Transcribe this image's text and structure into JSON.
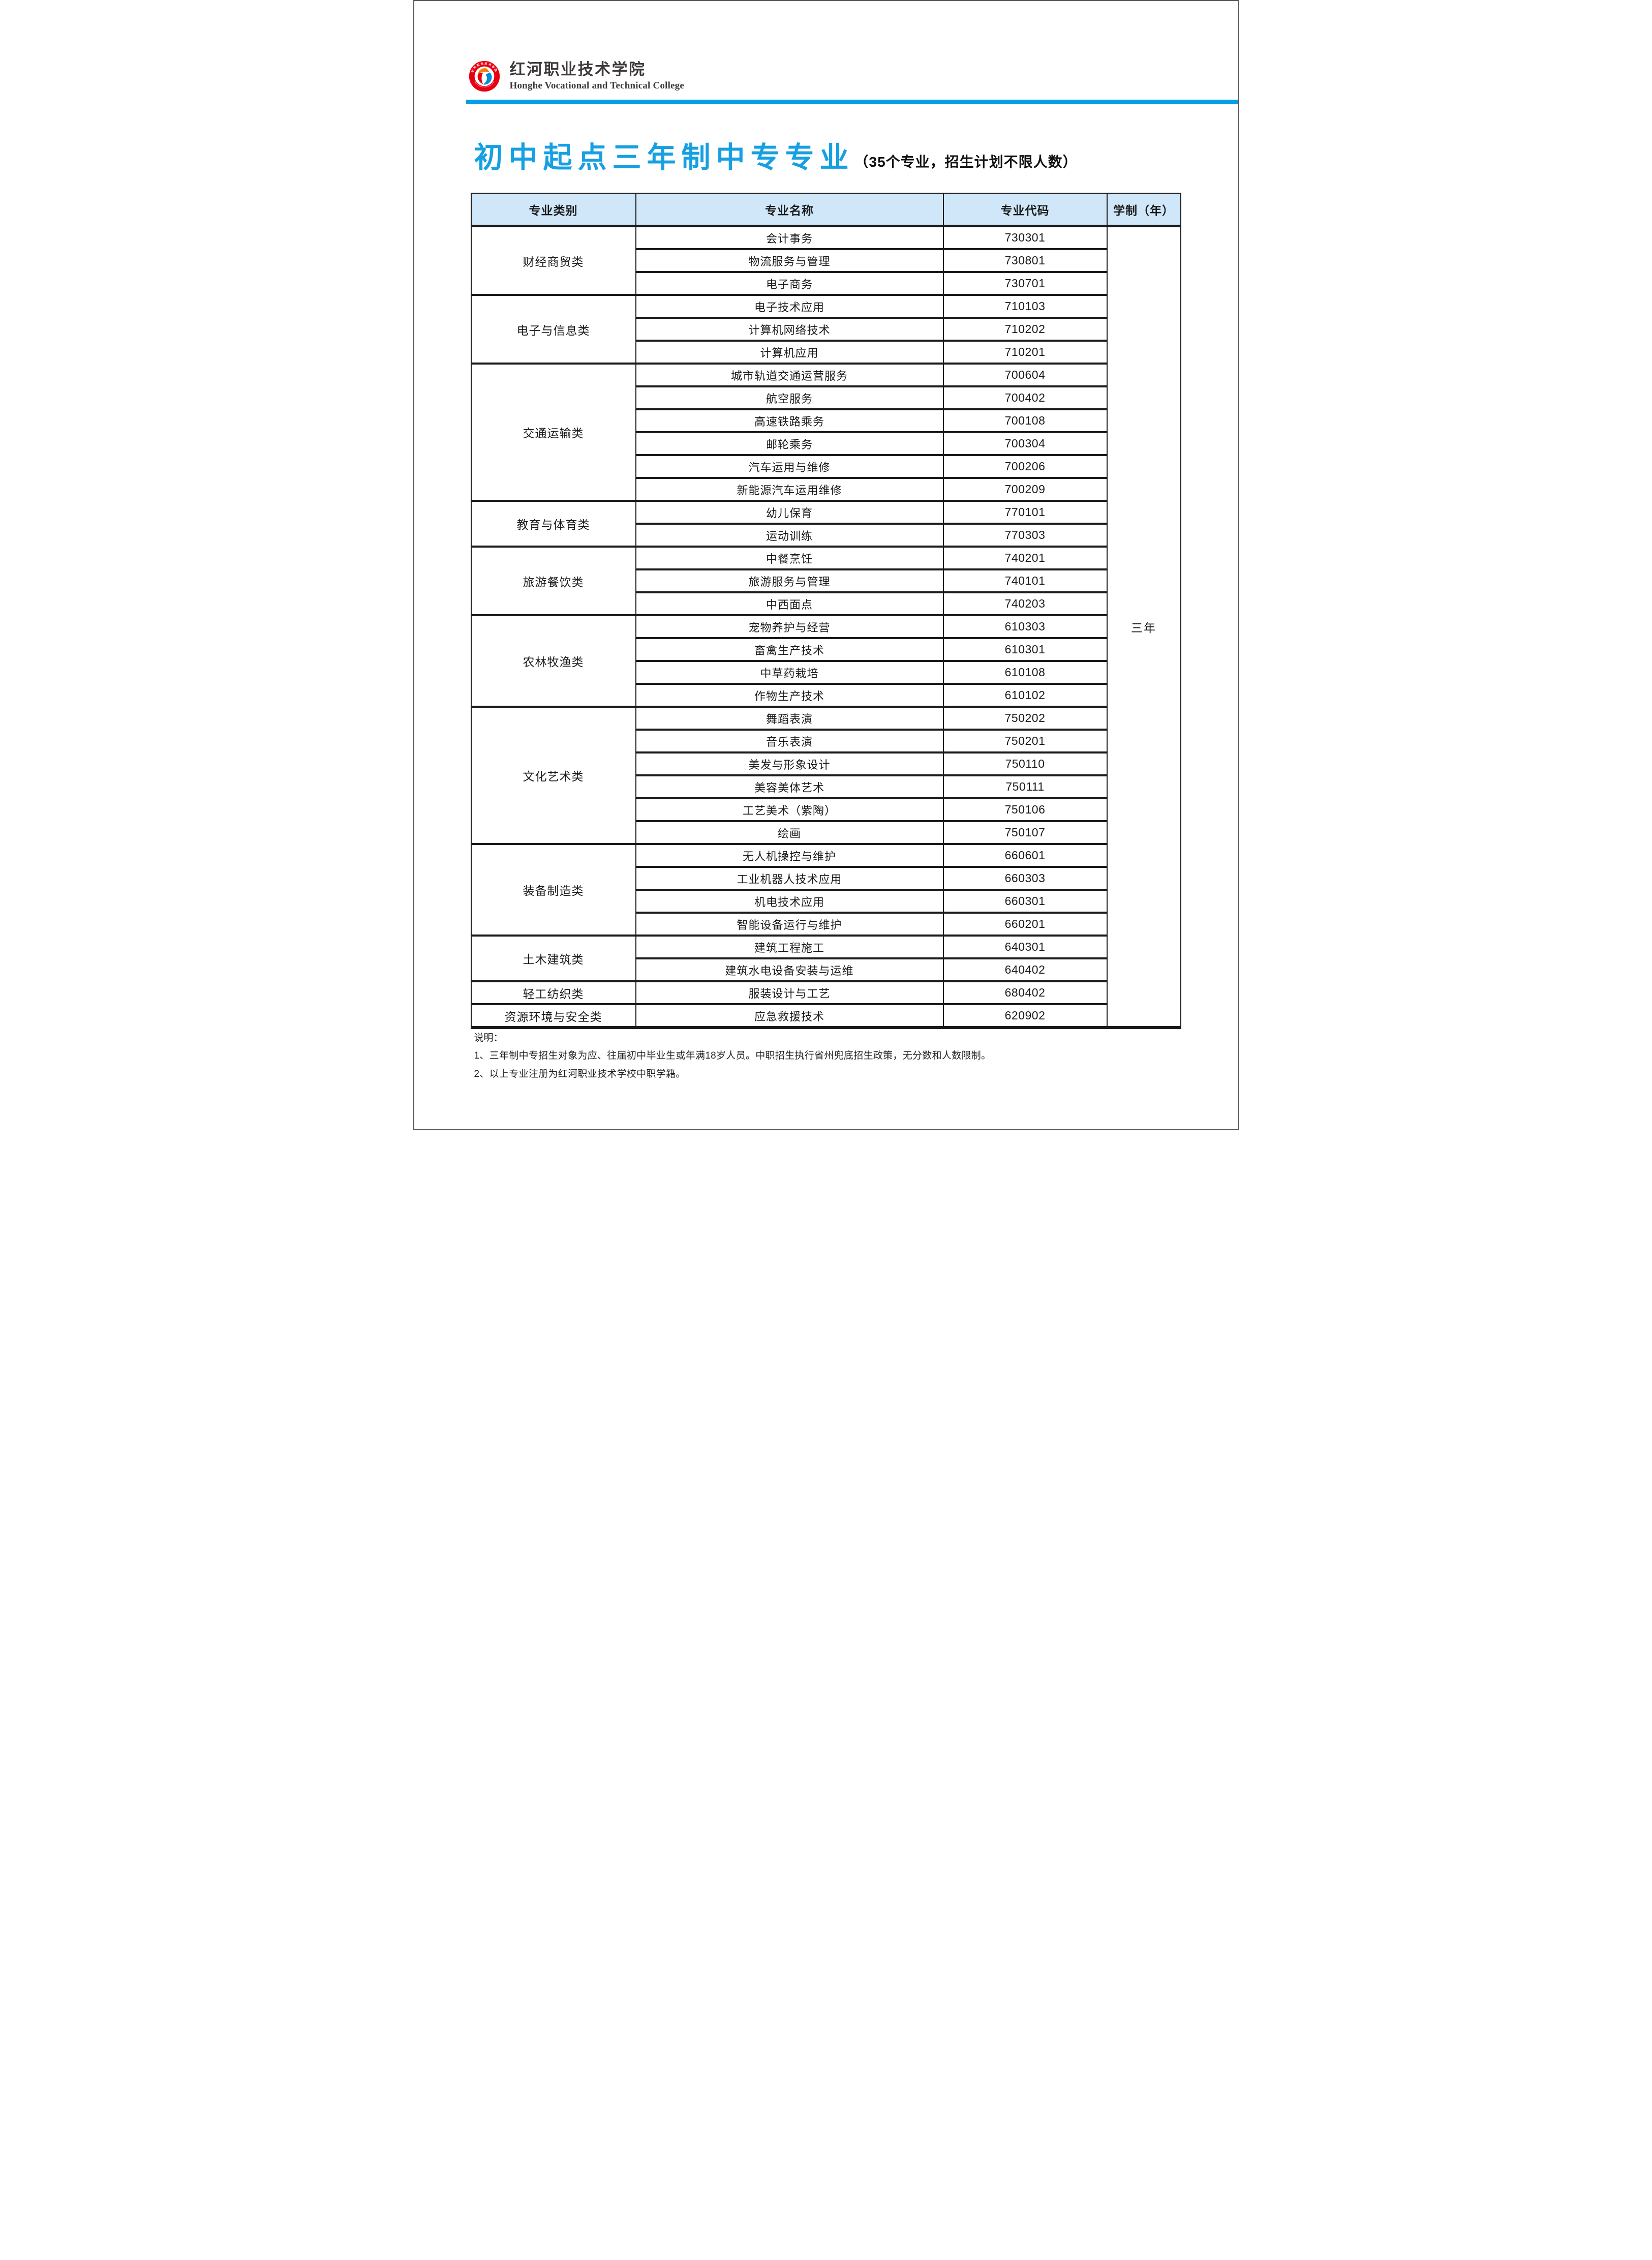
{
  "colors": {
    "accent": "#009fe8",
    "title_blue": "#16a0e2",
    "header_bg": "#cfe7f8",
    "logo_red": "#e60012",
    "ink": "#1a1a1a"
  },
  "header": {
    "college_name_zh": "红河职业技术学院",
    "college_name_en": "Honghe Vocational and Technical College"
  },
  "logo": {
    "ring_top": "红河职业技术学院",
    "ring_bottom": "Honghe Vocational and Technical College"
  },
  "title": {
    "text": "初中起点三年制中专专业",
    "subtitle": "（35个专业，招生计划不限人数）"
  },
  "table": {
    "columns": [
      "专业类别",
      "专业名称",
      "专业代码",
      "学制（年）"
    ],
    "duration": "三年",
    "groups": [
      {
        "category": "财经商贸类",
        "programs": [
          {
            "name": "会计事务",
            "code": "730301"
          },
          {
            "name": "物流服务与管理",
            "code": "730801"
          },
          {
            "name": "电子商务",
            "code": "730701"
          }
        ]
      },
      {
        "category": "电子与信息类",
        "programs": [
          {
            "name": "电子技术应用",
            "code": "710103"
          },
          {
            "name": "计算机网络技术",
            "code": "710202"
          },
          {
            "name": "计算机应用",
            "code": "710201"
          }
        ]
      },
      {
        "category": "交通运输类",
        "programs": [
          {
            "name": "城市轨道交通运营服务",
            "code": "700604"
          },
          {
            "name": "航空服务",
            "code": "700402"
          },
          {
            "name": "高速铁路乘务",
            "code": "700108"
          },
          {
            "name": "邮轮乘务",
            "code": "700304"
          },
          {
            "name": "汽车运用与维修",
            "code": "700206"
          },
          {
            "name": "新能源汽车运用维修",
            "code": "700209"
          }
        ]
      },
      {
        "category": "教育与体育类",
        "programs": [
          {
            "name": "幼儿保育",
            "code": "770101"
          },
          {
            "name": "运动训练",
            "code": "770303"
          }
        ]
      },
      {
        "category": "旅游餐饮类",
        "programs": [
          {
            "name": "中餐烹饪",
            "code": "740201"
          },
          {
            "name": "旅游服务与管理",
            "code": "740101"
          },
          {
            "name": "中西面点",
            "code": "740203"
          }
        ]
      },
      {
        "category": "农林牧渔类",
        "programs": [
          {
            "name": "宠物养护与经营",
            "code": "610303"
          },
          {
            "name": "畜禽生产技术",
            "code": "610301"
          },
          {
            "name": "中草药栽培",
            "code": "610108"
          },
          {
            "name": "作物生产技术",
            "code": "610102"
          }
        ]
      },
      {
        "category": "文化艺术类",
        "programs": [
          {
            "name": "舞蹈表演",
            "code": "750202"
          },
          {
            "name": "音乐表演",
            "code": "750201"
          },
          {
            "name": "美发与形象设计",
            "code": "750110"
          },
          {
            "name": "美容美体艺术",
            "code": "750111"
          },
          {
            "name": "工艺美术（紫陶）",
            "code": "750106"
          },
          {
            "name": "绘画",
            "code": "750107"
          }
        ]
      },
      {
        "category": "装备制造类",
        "programs": [
          {
            "name": "无人机操控与维护",
            "code": "660601"
          },
          {
            "name": "工业机器人技术应用",
            "code": "660303"
          },
          {
            "name": "机电技术应用",
            "code": "660301"
          },
          {
            "name": "智能设备运行与维护",
            "code": "660201"
          }
        ]
      },
      {
        "category": "土木建筑类",
        "programs": [
          {
            "name": "建筑工程施工",
            "code": "640301"
          },
          {
            "name": "建筑水电设备安装与运维",
            "code": "640402"
          }
        ]
      },
      {
        "category": "轻工纺织类",
        "programs": [
          {
            "name": "服装设计与工艺",
            "code": "680402"
          }
        ]
      },
      {
        "category": "资源环境与安全类",
        "programs": [
          {
            "name": "应急救援技术",
            "code": "620902"
          }
        ]
      }
    ]
  },
  "notes": {
    "heading": "说明：",
    "items": [
      "1、三年制中专招生对象为应、往届初中毕业生或年满18岁人员。中职招生执行省州兜底招生政策，无分数和人数限制。",
      "2、以上专业注册为红河职业技术学校中职学籍。"
    ]
  }
}
